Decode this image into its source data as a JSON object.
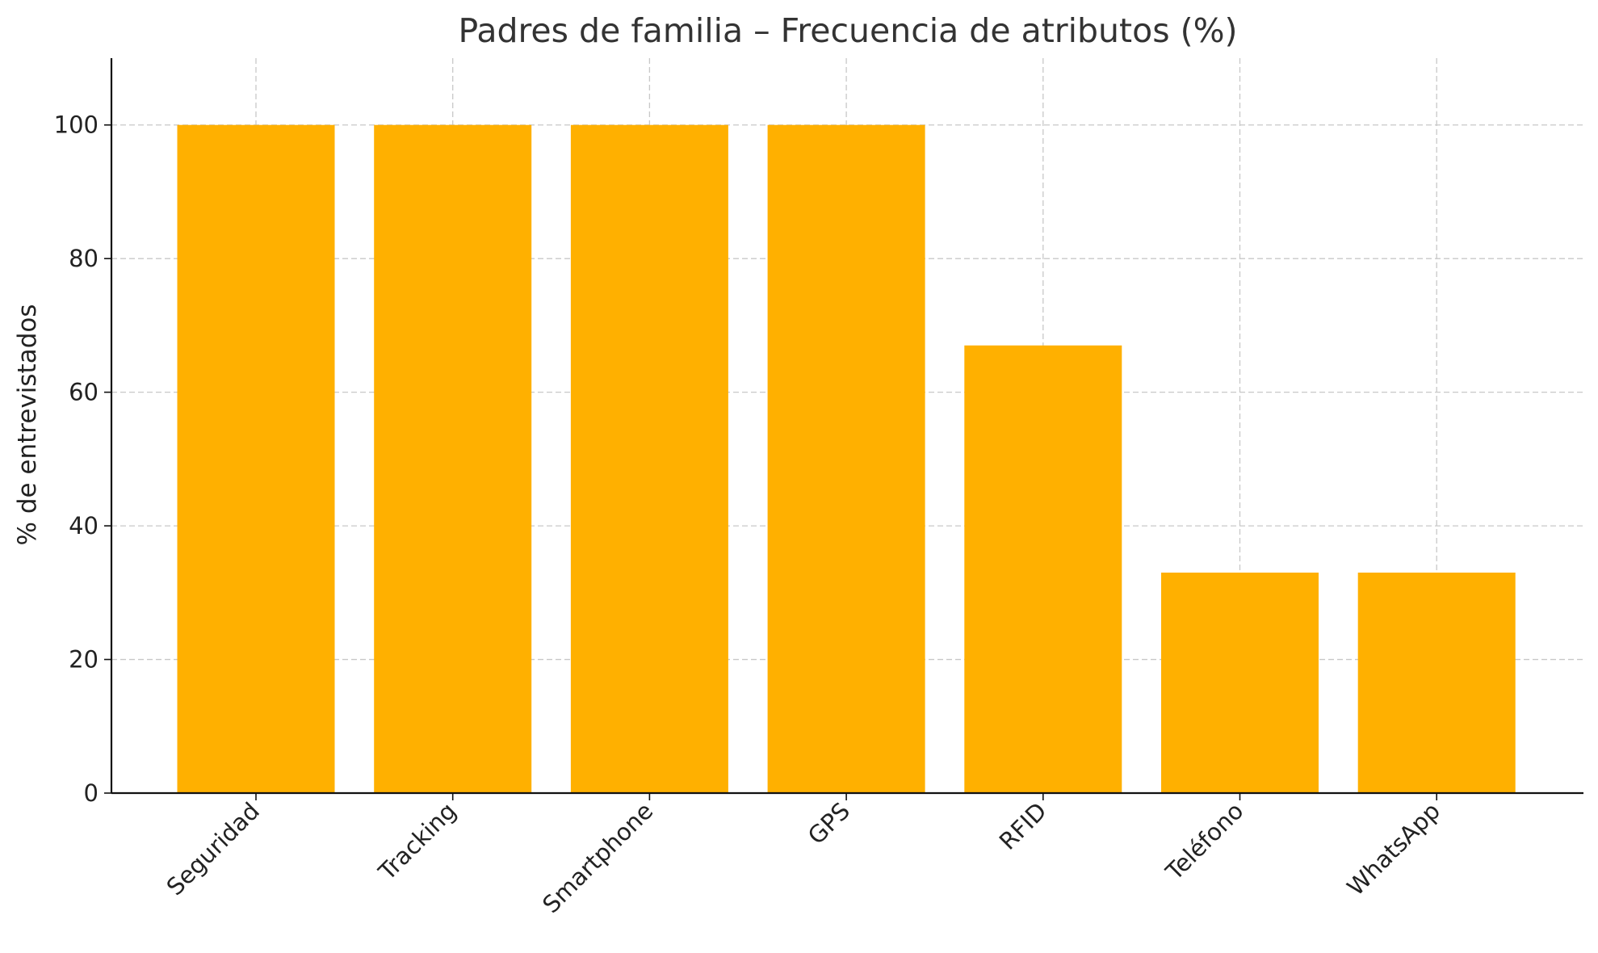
{
  "chart_data": {
    "type": "bar",
    "title": "Padres de familia – Frecuencia de atributos (%)",
    "xlabel": "",
    "ylabel": "% de entrevistados",
    "categories": [
      "Seguridad",
      "Tracking",
      "Smartphone",
      "GPS",
      "RFID",
      "Teléfono",
      "WhatsApp"
    ],
    "values": [
      100,
      100,
      100,
      100,
      67,
      33,
      33
    ],
    "ylim": [
      0,
      110
    ],
    "yticks": [
      0,
      20,
      40,
      60,
      80,
      100
    ],
    "grid": true,
    "bar_color": "#FFB000"
  }
}
